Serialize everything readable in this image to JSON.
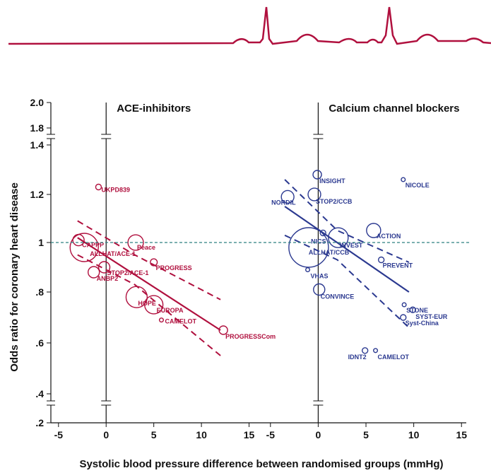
{
  "chart_data": [
    {
      "type": "scatter",
      "title": "ACE-inhibitors",
      "color": "#b0103e",
      "y_label": "Odds ratio for coronary heart disease",
      "x_label": "Systolic blood pressure difference between randomised groups (mmHg)",
      "ylim": [
        0.2,
        2.0
      ],
      "yticks": [
        {
          "value": 0.2,
          "label": ".2"
        },
        {
          "value": 0.4,
          "label": ".4"
        },
        {
          "value": 0.6,
          "label": ".6"
        },
        {
          "value": 0.8,
          "label": ".8"
        },
        1,
        1.2,
        1.4,
        1.8,
        {
          "value": 2.0,
          "label": "2.0"
        }
      ],
      "reference_line": 1,
      "xlim": [
        -5.8,
        15.7
      ],
      "xticks": [
        -5,
        0,
        5,
        10,
        15
      ],
      "labels": [
        "UKPD839",
        "CAPPP",
        "ALLHAT/ACE-1",
        "Peace",
        "PROGRESS",
        "STOP2/ACE-1",
        "ANBP2",
        "HOPE",
        "EUROPA",
        "CAMELOT",
        "PROGRESSCom"
      ],
      "x": [
        -0.8,
        -2.9,
        -2.3,
        3.1,
        5.0,
        -0.2,
        -1.3,
        3.2,
        5.0,
        5.8,
        12.3
      ],
      "values": [
        1.23,
        1.01,
        0.98,
        1.0,
        0.92,
        0.9,
        0.88,
        0.78,
        0.75,
        0.69,
        0.65
      ],
      "sizes": [
        4,
        16,
        100,
        30,
        6,
        16,
        16,
        56,
        42,
        2,
        9
      ],
      "fit": {
        "x": [
          -3,
          12
        ],
        "values": [
          1.02,
          0.65
        ]
      },
      "ci_upper": {
        "x": [
          -3,
          3,
          12
        ],
        "values": [
          1.09,
          0.95,
          0.77
        ]
      },
      "ci_lower": {
        "x": [
          -3,
          3,
          12
        ],
        "values": [
          0.95,
          0.83,
          0.55
        ]
      }
    },
    {
      "type": "scatter",
      "title": "Calcium channel blockers",
      "color": "#2b3990",
      "xlim": [
        -5.8,
        15.5
      ],
      "xticks": [
        -5,
        0,
        5,
        10,
        15
      ],
      "labels": [
        "INSIGHT",
        "NICOLE",
        "NORDIL",
        "STOP2/CCB",
        "ACTION",
        "NICS",
        "INVEST",
        "ALLHAT/CCB",
        "PREVENT",
        "VHAS",
        "CONVINCE",
        "STONE",
        "SYST-EUR",
        "Syst-China",
        "IDNT2",
        "CAMELOT"
      ],
      "x": [
        -0.1,
        8.9,
        -3.2,
        -0.4,
        5.8,
        0.5,
        2.1,
        -1.0,
        6.6,
        -1.1,
        0.1,
        9.0,
        9.9,
        8.9,
        4.9,
        6.0
      ],
      "values": [
        1.28,
        1.26,
        1.19,
        1.2,
        1.05,
        1.04,
        1.02,
        0.98,
        0.93,
        0.89,
        0.81,
        0.75,
        0.73,
        0.7,
        0.57,
        0.57
      ],
      "sizes": [
        9,
        2,
        20,
        20,
        25,
        4,
        49,
        196,
        4,
        2,
        16,
        2,
        4,
        4,
        4,
        2
      ],
      "fit": {
        "x": [
          -3.5,
          9.5
        ],
        "values": [
          1.15,
          0.8
        ]
      },
      "ci_upper": {
        "x": [
          -3.5,
          2,
          9.5
        ],
        "values": [
          1.26,
          1.05,
          0.92
        ]
      },
      "ci_lower": {
        "x": [
          -3.5,
          2,
          9.5
        ],
        "values": [
          1.03,
          0.93,
          0.66
        ]
      }
    }
  ]
}
